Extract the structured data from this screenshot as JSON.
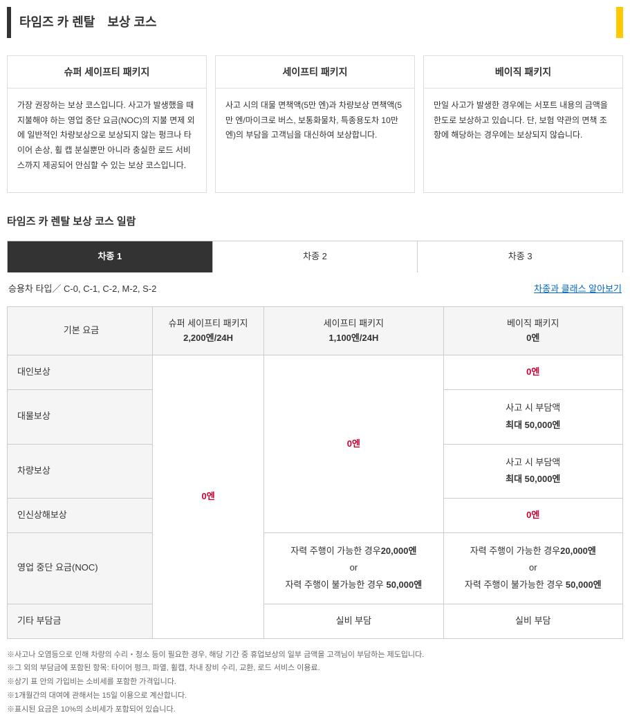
{
  "header": {
    "title": "타임즈 카 렌탈　보상 코스"
  },
  "packages": [
    {
      "title": "슈퍼 세이프티 패키지",
      "body": "가장 권장하는 보상 코스입니다. 사고가 발생했을 때 지불해야 하는 영업 중단 요금(NOC)의 지불 면제 외에 일반적인 차량보상으로 보상되지 않는 펑크나 타이어 손상, 휠 캡 분실뿐만 아니라 충실한 로드 서비스까지 제공되어 안심할 수 있는 보상 코스입니다."
    },
    {
      "title": "세이프티 패키지",
      "body": "사고 시의 대물 면책액(5만 엔)과 차량보상 면책액(5만 엔/마이크로 버스, 보통화물차, 특종용도차 10만 엔)의 부담을 고객님을 대신하여 보상합니다."
    },
    {
      "title": "베이직 패키지",
      "body": "만일 사고가 발생한 경우에는 서포트 내용의 금액을 한도로 보상하고 있습니다. 단, 보험 약관의 면책 조항에 해당하는 경우에는 보상되지 않습니다."
    }
  ],
  "section_title": "타임즈 카 렌탈 보상 코스 일람",
  "tabs": [
    {
      "label": "차종 1",
      "active": true
    },
    {
      "label": "차종 2",
      "active": false
    },
    {
      "label": "차종 3",
      "active": false
    }
  ],
  "subheader": {
    "left": "승용차 타입／ C-0, C-1, C-2, M-2, S-2",
    "right": "차종과 클래스 알아보기"
  },
  "table": {
    "head": {
      "base": "기본 요금",
      "col1_name": "슈퍼 세이프티 패키지",
      "col1_price": "2,200엔/24H",
      "col2_name": "세이프티 패키지",
      "col2_price": "1,100엔/24H",
      "col3_name": "베이직 패키지",
      "col3_price": "0엔"
    },
    "rows": {
      "r1": "대인보상",
      "r2": "대물보상",
      "r3": "차량보상",
      "r4": "인신상해보상",
      "r5": "영업 중단 요금(NOC)",
      "r6": "기타 부담금"
    },
    "vals": {
      "zero_yen": "0엔",
      "burden_label": "사고 시 부담액",
      "burden_amount": "최대 50,000엔",
      "noc_line1a": "자력 주행이 가능한 경우",
      "noc_line1b": "20,000엔",
      "noc_or": "or",
      "noc_line2a": "자력 주행이 불가능한 경우 ",
      "noc_line2b": "50,000엔",
      "actual_cost": "실비 부담"
    }
  },
  "notes": [
    "※사고나 오염등으로 인해 차량의 수리・청소 등이 필요한 경우, 해당 기간 중 휴업보상의 일부 금액을 고객님이 부담하는 제도입니다.",
    "※그 외의 부담금에 포함된 항목: 타이어 펑크, 파열, 휠캡, 차내 장비 수리, 교환, 로드 서비스 이용료.",
    "※상기 표 안의 가입비는 소비세를 포함한 가격입니다.",
    "※1개월간의 대여에 관해서는 15일 이용으로 계산합니다.",
    "※표시된 요금은 10%의 소비세가 포함되어 있습니다."
  ]
}
